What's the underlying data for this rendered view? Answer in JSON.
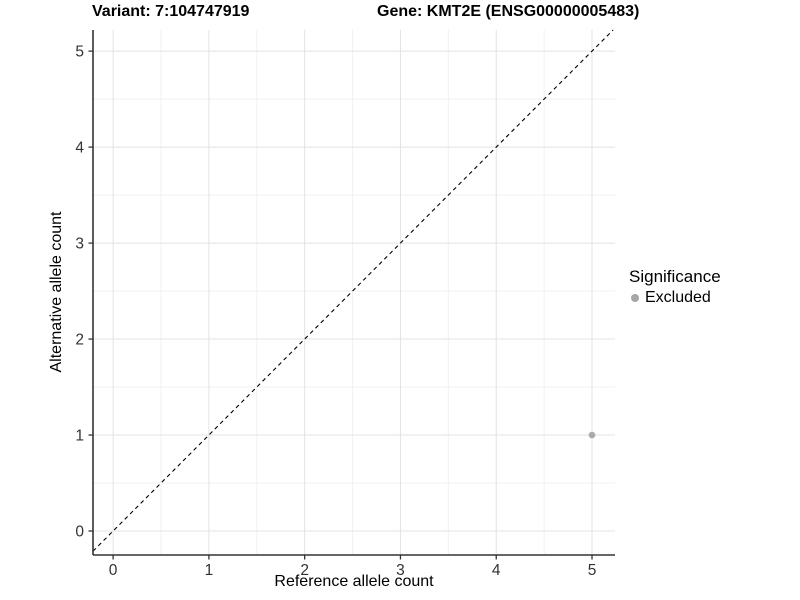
{
  "chart_data": {
    "type": "scatter",
    "titles": {
      "left": "Variant: 7:104747919",
      "right": "Gene: KMT2E (ENSG00000005483)"
    },
    "xlabel": "Reference allele count",
    "ylabel": "Alternative allele count",
    "x_ticks": [
      0,
      1,
      2,
      3,
      4,
      5
    ],
    "y_ticks": [
      0,
      1,
      2,
      3,
      4,
      5
    ],
    "xlim": [
      -0.21,
      5.24
    ],
    "ylim": [
      -0.25,
      5.22
    ],
    "grid": true,
    "minor_grid": true,
    "reference_line": {
      "type": "identity",
      "style": "dashed",
      "color": "#000000"
    },
    "points": [
      {
        "x": 5,
        "y": 1,
        "series": "Excluded"
      }
    ],
    "legend": {
      "title": "Significance",
      "position": "right",
      "items": [
        {
          "label": "Excluded",
          "color": "#a6a6a6"
        }
      ]
    },
    "colors": {
      "grid_major": "#e3e3e3",
      "grid_minor": "#f1f1f1",
      "axis_line": "#333333",
      "tick_text": "#333333",
      "point": "#aaaaaa",
      "background": "#ffffff"
    }
  }
}
